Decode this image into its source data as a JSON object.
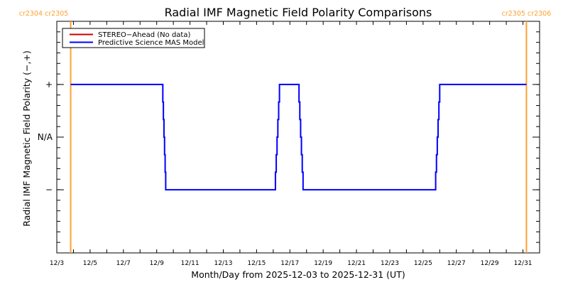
{
  "chart_data": {
    "type": "line",
    "title": "Radial IMF Magnetic Field Polarity Comparisons",
    "xlabel": "Month/Day from 2025-12-03 to 2025-12-31 (UT)",
    "ylabel": "Radial IMF Magnetic Field Polarity (−,+)",
    "xlim": [
      "2025-12-03T00:00",
      "2026-01-01T00:00"
    ],
    "ylim": [
      -2.2,
      2.2
    ],
    "grid": false,
    "legend_position": "top-left",
    "x_tick_labels": [
      "12/3",
      "12/5",
      "12/7",
      "12/9",
      "12/11",
      "12/13",
      "12/15",
      "12/17",
      "12/19",
      "12/21",
      "12/23",
      "12/25",
      "12/27",
      "12/29",
      "12/31"
    ],
    "y_ticks": [
      {
        "value": 1,
        "label": "+"
      },
      {
        "value": 0,
        "label": "N/A"
      },
      {
        "value": -1,
        "label": "−"
      }
    ],
    "series": [
      {
        "name": "STEREO−Ahead (No data)",
        "color": "#cc0000",
        "points": []
      },
      {
        "name": "Predictive Science MAS Model",
        "color": "#0000ff",
        "points": [
          [
            "2025-12-03T20:00",
            1
          ],
          [
            "2025-12-09T08:00",
            1
          ],
          [
            "2025-12-09T13:00",
            -1
          ],
          [
            "2025-12-16T02:00",
            -1
          ],
          [
            "2025-12-16T09:00",
            1
          ],
          [
            "2025-12-17T12:00",
            1
          ],
          [
            "2025-12-17T19:00",
            -1
          ],
          [
            "2025-12-25T17:00",
            -1
          ],
          [
            "2025-12-26T00:00",
            1
          ],
          [
            "2025-12-31T05:00",
            1
          ]
        ]
      }
    ],
    "carrington_markers": [
      {
        "date": "2025-12-03T20:00",
        "label": "cr2304 cr2305"
      },
      {
        "date": "2025-12-31T05:00",
        "label": "cr2305 cr2306"
      }
    ],
    "marker_color": "#ffa030"
  }
}
